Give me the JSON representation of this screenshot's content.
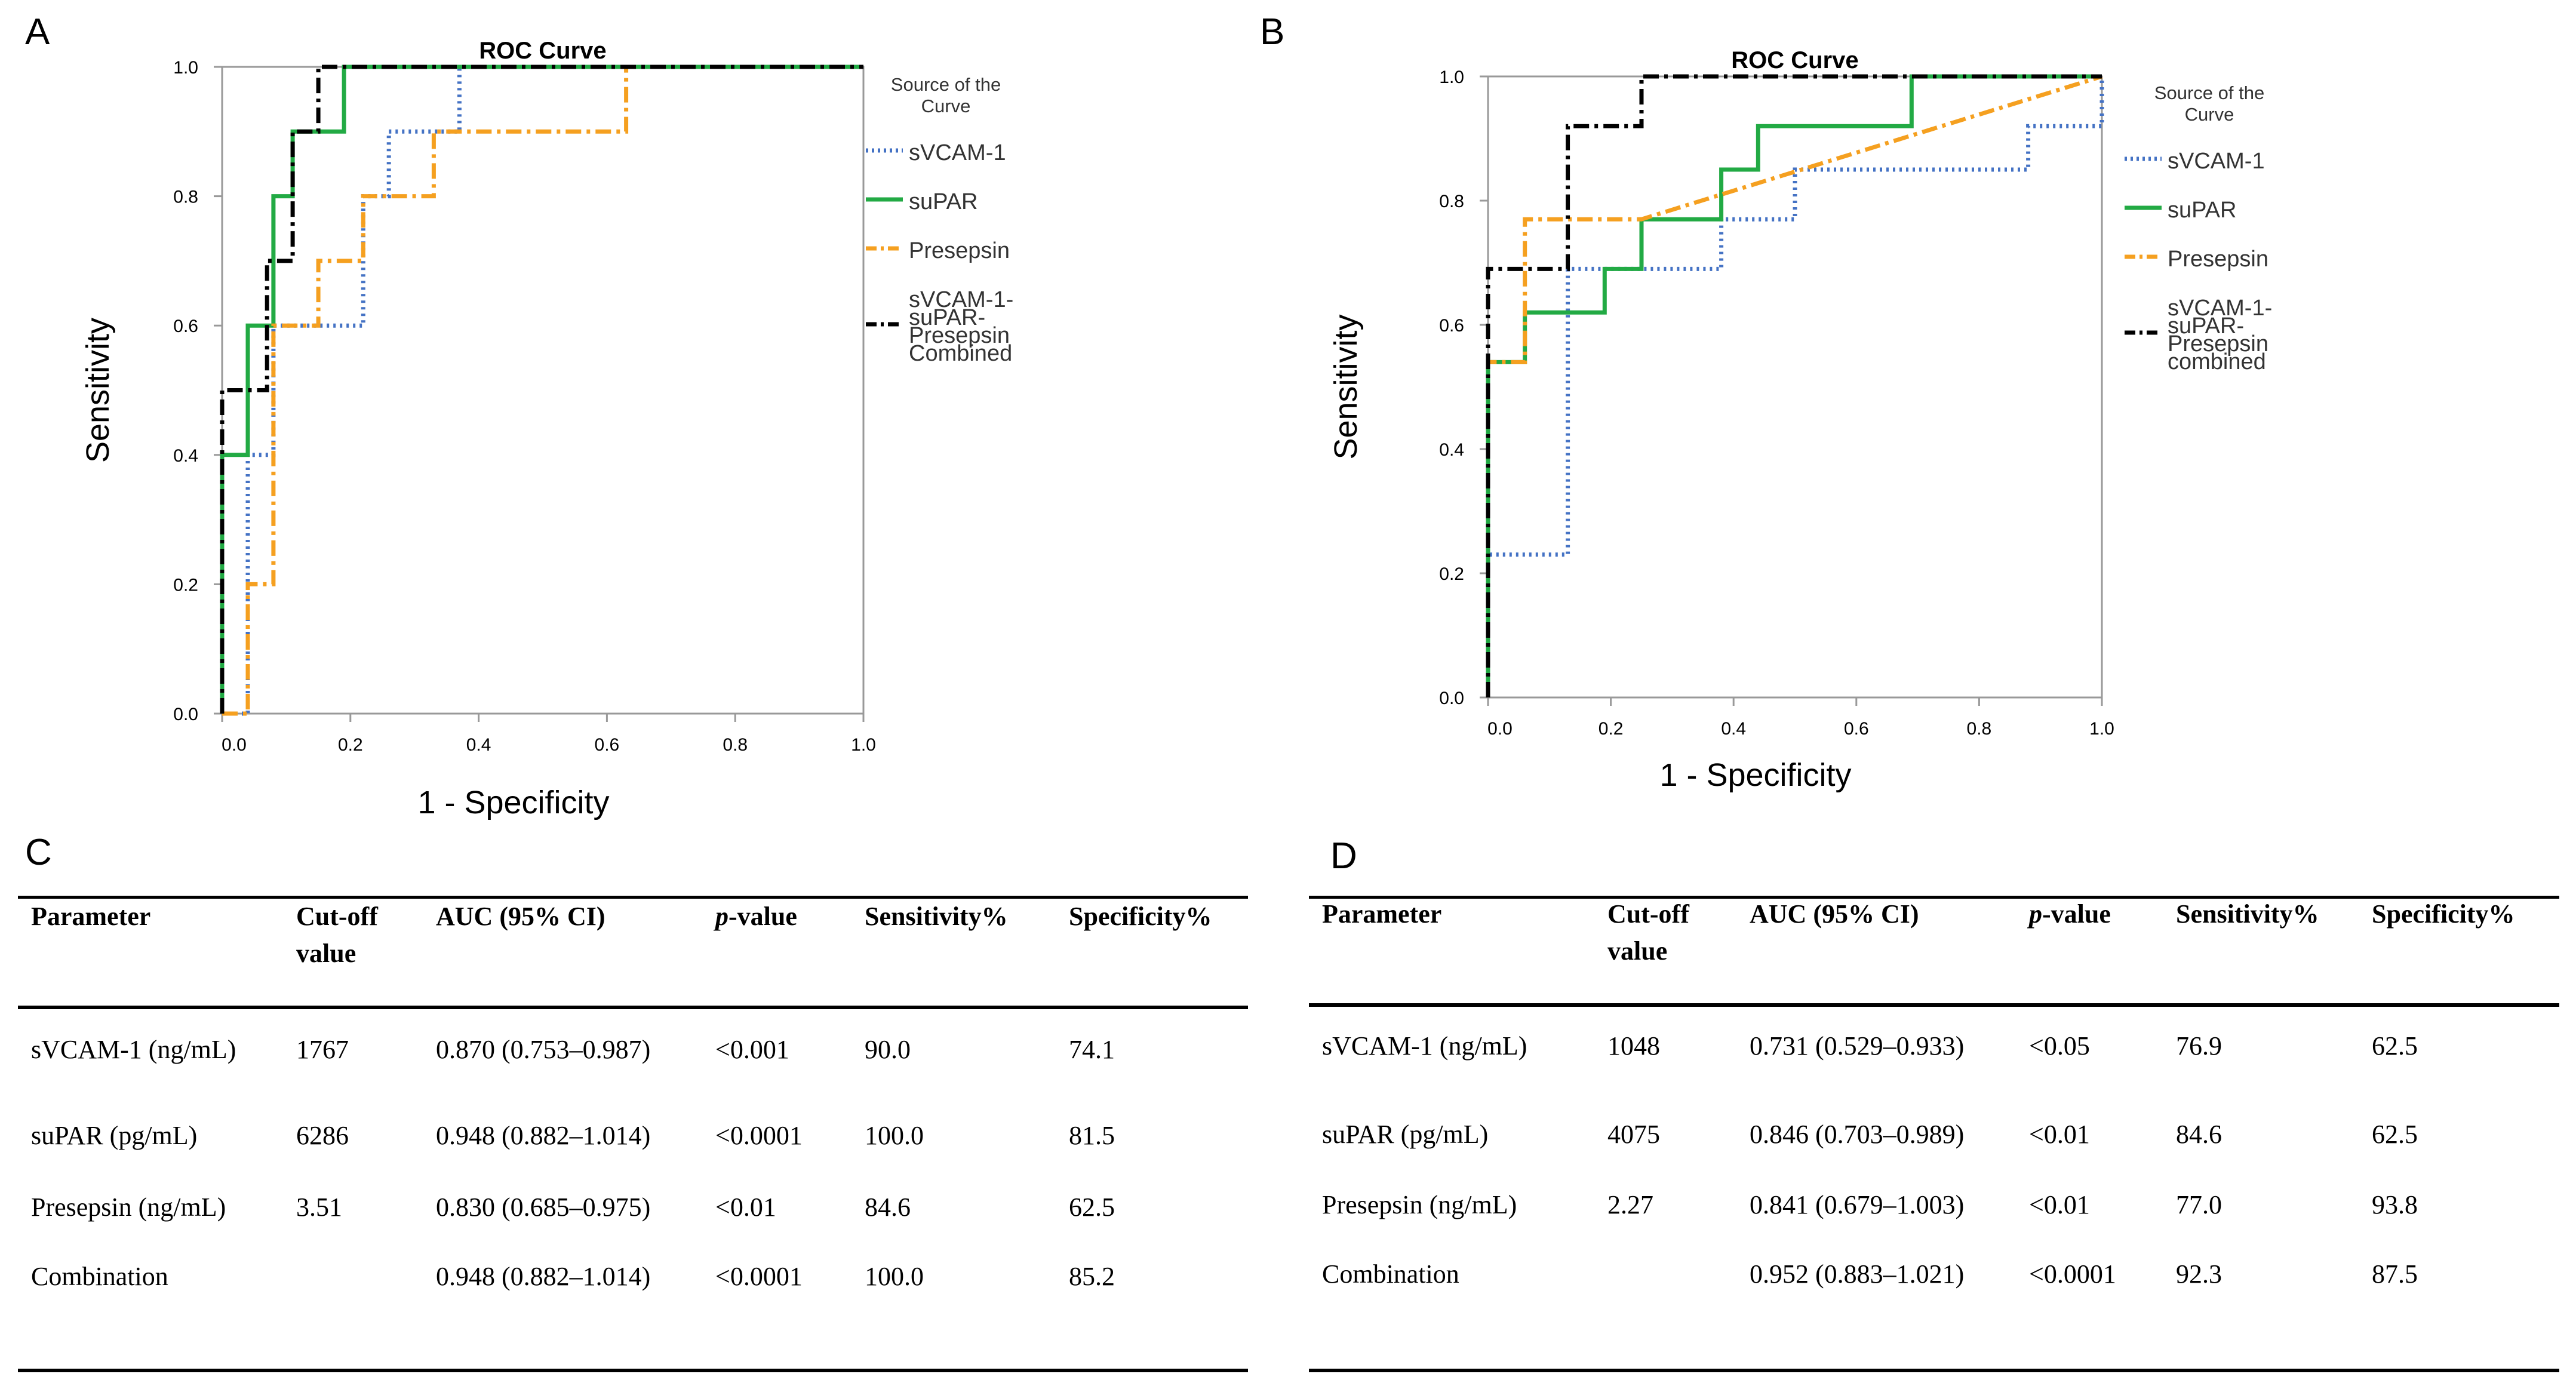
{
  "panels": {
    "A": "A",
    "B": "B",
    "C": "C",
    "D": "D"
  },
  "chart_data": [
    {
      "type": "line",
      "panel": "A",
      "title": "ROC Curve",
      "xlabel": "1 - Specificity",
      "ylabel": "Sensitivity",
      "xlim": [
        0,
        1
      ],
      "ylim": [
        0,
        1
      ],
      "xticks": [
        "0.0",
        "0.2",
        "0.4",
        "0.6",
        "0.8",
        "1.0"
      ],
      "yticks": [
        "0.0",
        "0.2",
        "0.4",
        "0.6",
        "0.8",
        "1.0"
      ],
      "legend_title": [
        "Source of the",
        "Curve"
      ],
      "series": [
        {
          "name": "sVCAM-1",
          "label_lines": [
            "sVCAM-1"
          ],
          "color": "#4472c4",
          "dash": "dotted",
          "x": [
            0,
            0.04,
            0.04,
            0.08,
            0.08,
            0.22,
            0.22,
            0.26,
            0.26,
            0.37,
            0.37,
            1.0
          ],
          "y": [
            0,
            0,
            0.4,
            0.4,
            0.6,
            0.6,
            0.8,
            0.8,
            0.9,
            0.9,
            1.0,
            1.0
          ]
        },
        {
          "name": "suPAR",
          "label_lines": [
            "suPAR"
          ],
          "color": "#22aa44",
          "dash": "solid",
          "x": [
            0,
            0,
            0.04,
            0.04,
            0.08,
            0.08,
            0.11,
            0.11,
            0.19,
            0.19,
            1.0
          ],
          "y": [
            0,
            0.4,
            0.4,
            0.6,
            0.6,
            0.8,
            0.8,
            0.9,
            0.9,
            1.0,
            1.0
          ]
        },
        {
          "name": "Presepsin",
          "label_lines": [
            "Presepsin"
          ],
          "color": "#f5a020",
          "dash": "dashdot",
          "x": [
            0,
            0.04,
            0.04,
            0.08,
            0.08,
            0.15,
            0.15,
            0.22,
            0.22,
            0.33,
            0.33,
            0.63,
            0.63,
            1.0
          ],
          "y": [
            0,
            0,
            0.2,
            0.2,
            0.6,
            0.6,
            0.7,
            0.7,
            0.8,
            0.8,
            0.9,
            0.9,
            1.0,
            1.0
          ]
        },
        {
          "name": "sVCAM-1-suPAR-Presepsin Combined",
          "label_lines": [
            "sVCAM-1-",
            "suPAR-",
            "Presepsin",
            "Combined"
          ],
          "color": "#000000",
          "dash": "dashdot",
          "x": [
            0,
            0,
            0.07,
            0.07,
            0.11,
            0.11,
            0.15,
            0.15,
            1.0
          ],
          "y": [
            0,
            0.5,
            0.5,
            0.7,
            0.7,
            0.9,
            0.9,
            1.0,
            1.0
          ]
        }
      ]
    },
    {
      "type": "line",
      "panel": "B",
      "title": "ROC Curve",
      "xlabel": "1 - Specificity",
      "ylabel": "Sensitivity",
      "xlim": [
        0,
        1
      ],
      "ylim": [
        0,
        1
      ],
      "xticks": [
        "0.0",
        "0.2",
        "0.4",
        "0.6",
        "0.8",
        "1.0"
      ],
      "yticks": [
        "0.0",
        "0.2",
        "0.4",
        "0.6",
        "0.8",
        "1.0"
      ],
      "legend_title": [
        "Source of the",
        "Curve"
      ],
      "series": [
        {
          "name": "sVCAM-1",
          "label_lines": [
            "sVCAM-1"
          ],
          "color": "#4472c4",
          "dash": "dotted",
          "x": [
            0,
            0,
            0.13,
            0.13,
            0.38,
            0.38,
            0.5,
            0.5,
            0.88,
            0.88,
            1.0,
            1.0
          ],
          "y": [
            0,
            0.23,
            0.23,
            0.69,
            0.69,
            0.77,
            0.77,
            0.85,
            0.85,
            0.92,
            0.92,
            1.0
          ]
        },
        {
          "name": "suPAR",
          "label_lines": [
            "suPAR"
          ],
          "color": "#22aa44",
          "dash": "solid",
          "x": [
            0,
            0,
            0.06,
            0.06,
            0.19,
            0.19,
            0.25,
            0.25,
            0.38,
            0.38,
            0.44,
            0.44,
            0.69,
            0.69,
            1.0
          ],
          "y": [
            0,
            0.54,
            0.54,
            0.62,
            0.62,
            0.69,
            0.69,
            0.77,
            0.77,
            0.85,
            0.85,
            0.92,
            0.92,
            1.0,
            1.0
          ]
        },
        {
          "name": "Presepsin",
          "label_lines": [
            "Presepsin"
          ],
          "color": "#f5a020",
          "dash": "dashdot",
          "x": [
            0,
            0,
            0.06,
            0.06,
            0.25,
            1.0
          ],
          "y": [
            0,
            0.54,
            0.54,
            0.77,
            0.77,
            1.0
          ]
        },
        {
          "name": "sVCAM-1-suPAR-Presepsin combined",
          "label_lines": [
            "sVCAM-1-",
            "suPAR-",
            "Presepsin",
            "combined"
          ],
          "color": "#000000",
          "dash": "dashdot",
          "x": [
            0,
            0,
            0.13,
            0.13,
            0.25,
            0.25,
            1.0
          ],
          "y": [
            0,
            0.69,
            0.69,
            0.92,
            0.92,
            1.0,
            1.0
          ]
        }
      ]
    }
  ],
  "tables": [
    {
      "panel": "C",
      "headers": [
        [
          "Parameter"
        ],
        [
          "Cut-off",
          "value"
        ],
        [
          "AUC (95% CI)"
        ],
        [
          "p",
          "-value"
        ],
        [
          "Sensitivity%"
        ],
        [
          "Specificity%"
        ]
      ],
      "rows": [
        [
          "sVCAM-1 (ng/mL)",
          "1767",
          "0.870 (0.753–0.987)",
          "<0.001",
          "90.0",
          "74.1"
        ],
        [
          "suPAR (pg/mL)",
          "6286",
          "0.948 (0.882–1.014)",
          "<0.0001",
          "100.0",
          "81.5"
        ],
        [
          "Presepsin (ng/mL)",
          "3.51",
          "0.830 (0.685–0.975)",
          "<0.01",
          "84.6",
          "62.5"
        ],
        [
          "Combination",
          "",
          "0.948 (0.882–1.014)",
          "<0.0001",
          "100.0",
          "85.2"
        ]
      ]
    },
    {
      "panel": "D",
      "headers": [
        [
          "Parameter"
        ],
        [
          "Cut-off",
          "value"
        ],
        [
          "AUC (95% CI)"
        ],
        [
          "p",
          "-value"
        ],
        [
          "Sensitivity%"
        ],
        [
          "Specificity%"
        ]
      ],
      "rows": [
        [
          "sVCAM-1 (ng/mL)",
          "1048",
          "0.731 (0.529–0.933)",
          "<0.05",
          "76.9",
          "62.5"
        ],
        [
          "suPAR (pg/mL)",
          "4075",
          "0.846 (0.703–0.989)",
          "<0.01",
          "84.6",
          "62.5"
        ],
        [
          "Presepsin (ng/mL)",
          "2.27",
          "0.841 (0.679–1.003)",
          "<0.01",
          "77.0",
          "93.8"
        ],
        [
          "Combination",
          "",
          "0.952 (0.883–1.021)",
          "<0.0001",
          "92.3",
          "87.5"
        ]
      ]
    }
  ]
}
